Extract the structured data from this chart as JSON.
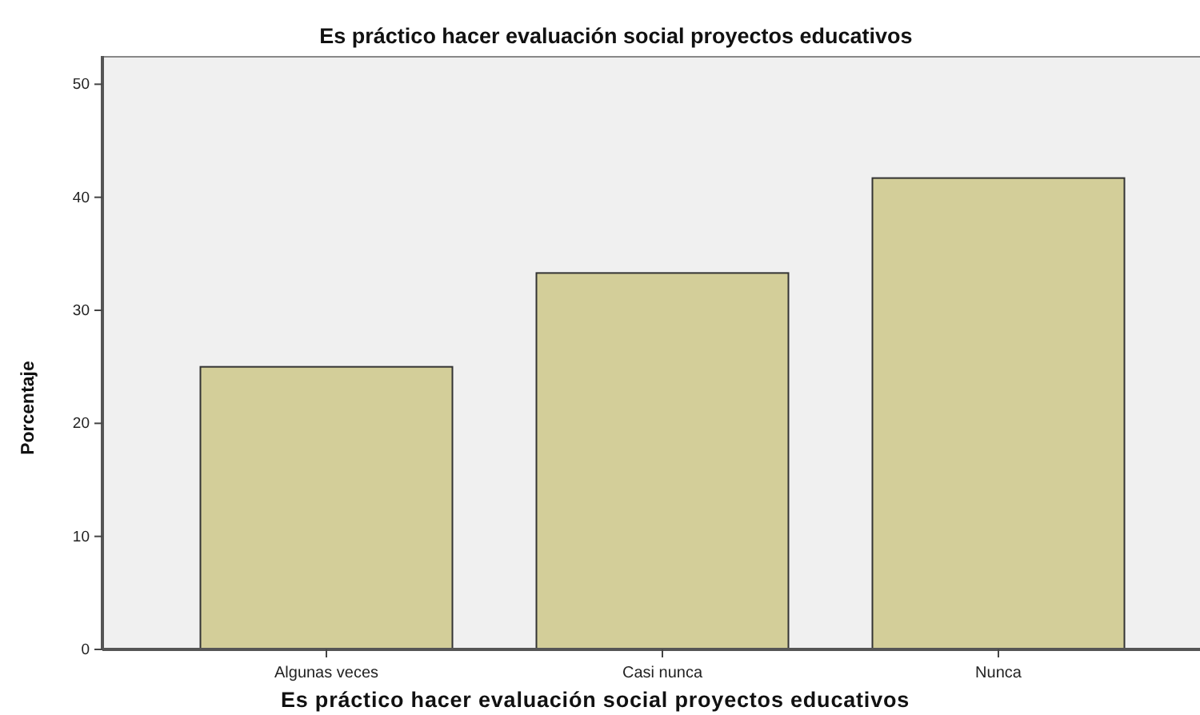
{
  "chart_data": {
    "type": "bar",
    "title": "Es práctico hacer evaluación social proyectos educativos",
    "xlabel": "Es práctico hacer evaluación social proyectos educativos",
    "ylabel": "Porcentaje",
    "categories": [
      "Algunas veces",
      "Casi nunca",
      "Nunca"
    ],
    "values": [
      25,
      33.3,
      41.7
    ],
    "color": "#d3ce99",
    "ylim": [
      0,
      52.5
    ],
    "yticks": [
      0,
      10,
      20,
      30,
      40,
      50
    ]
  }
}
